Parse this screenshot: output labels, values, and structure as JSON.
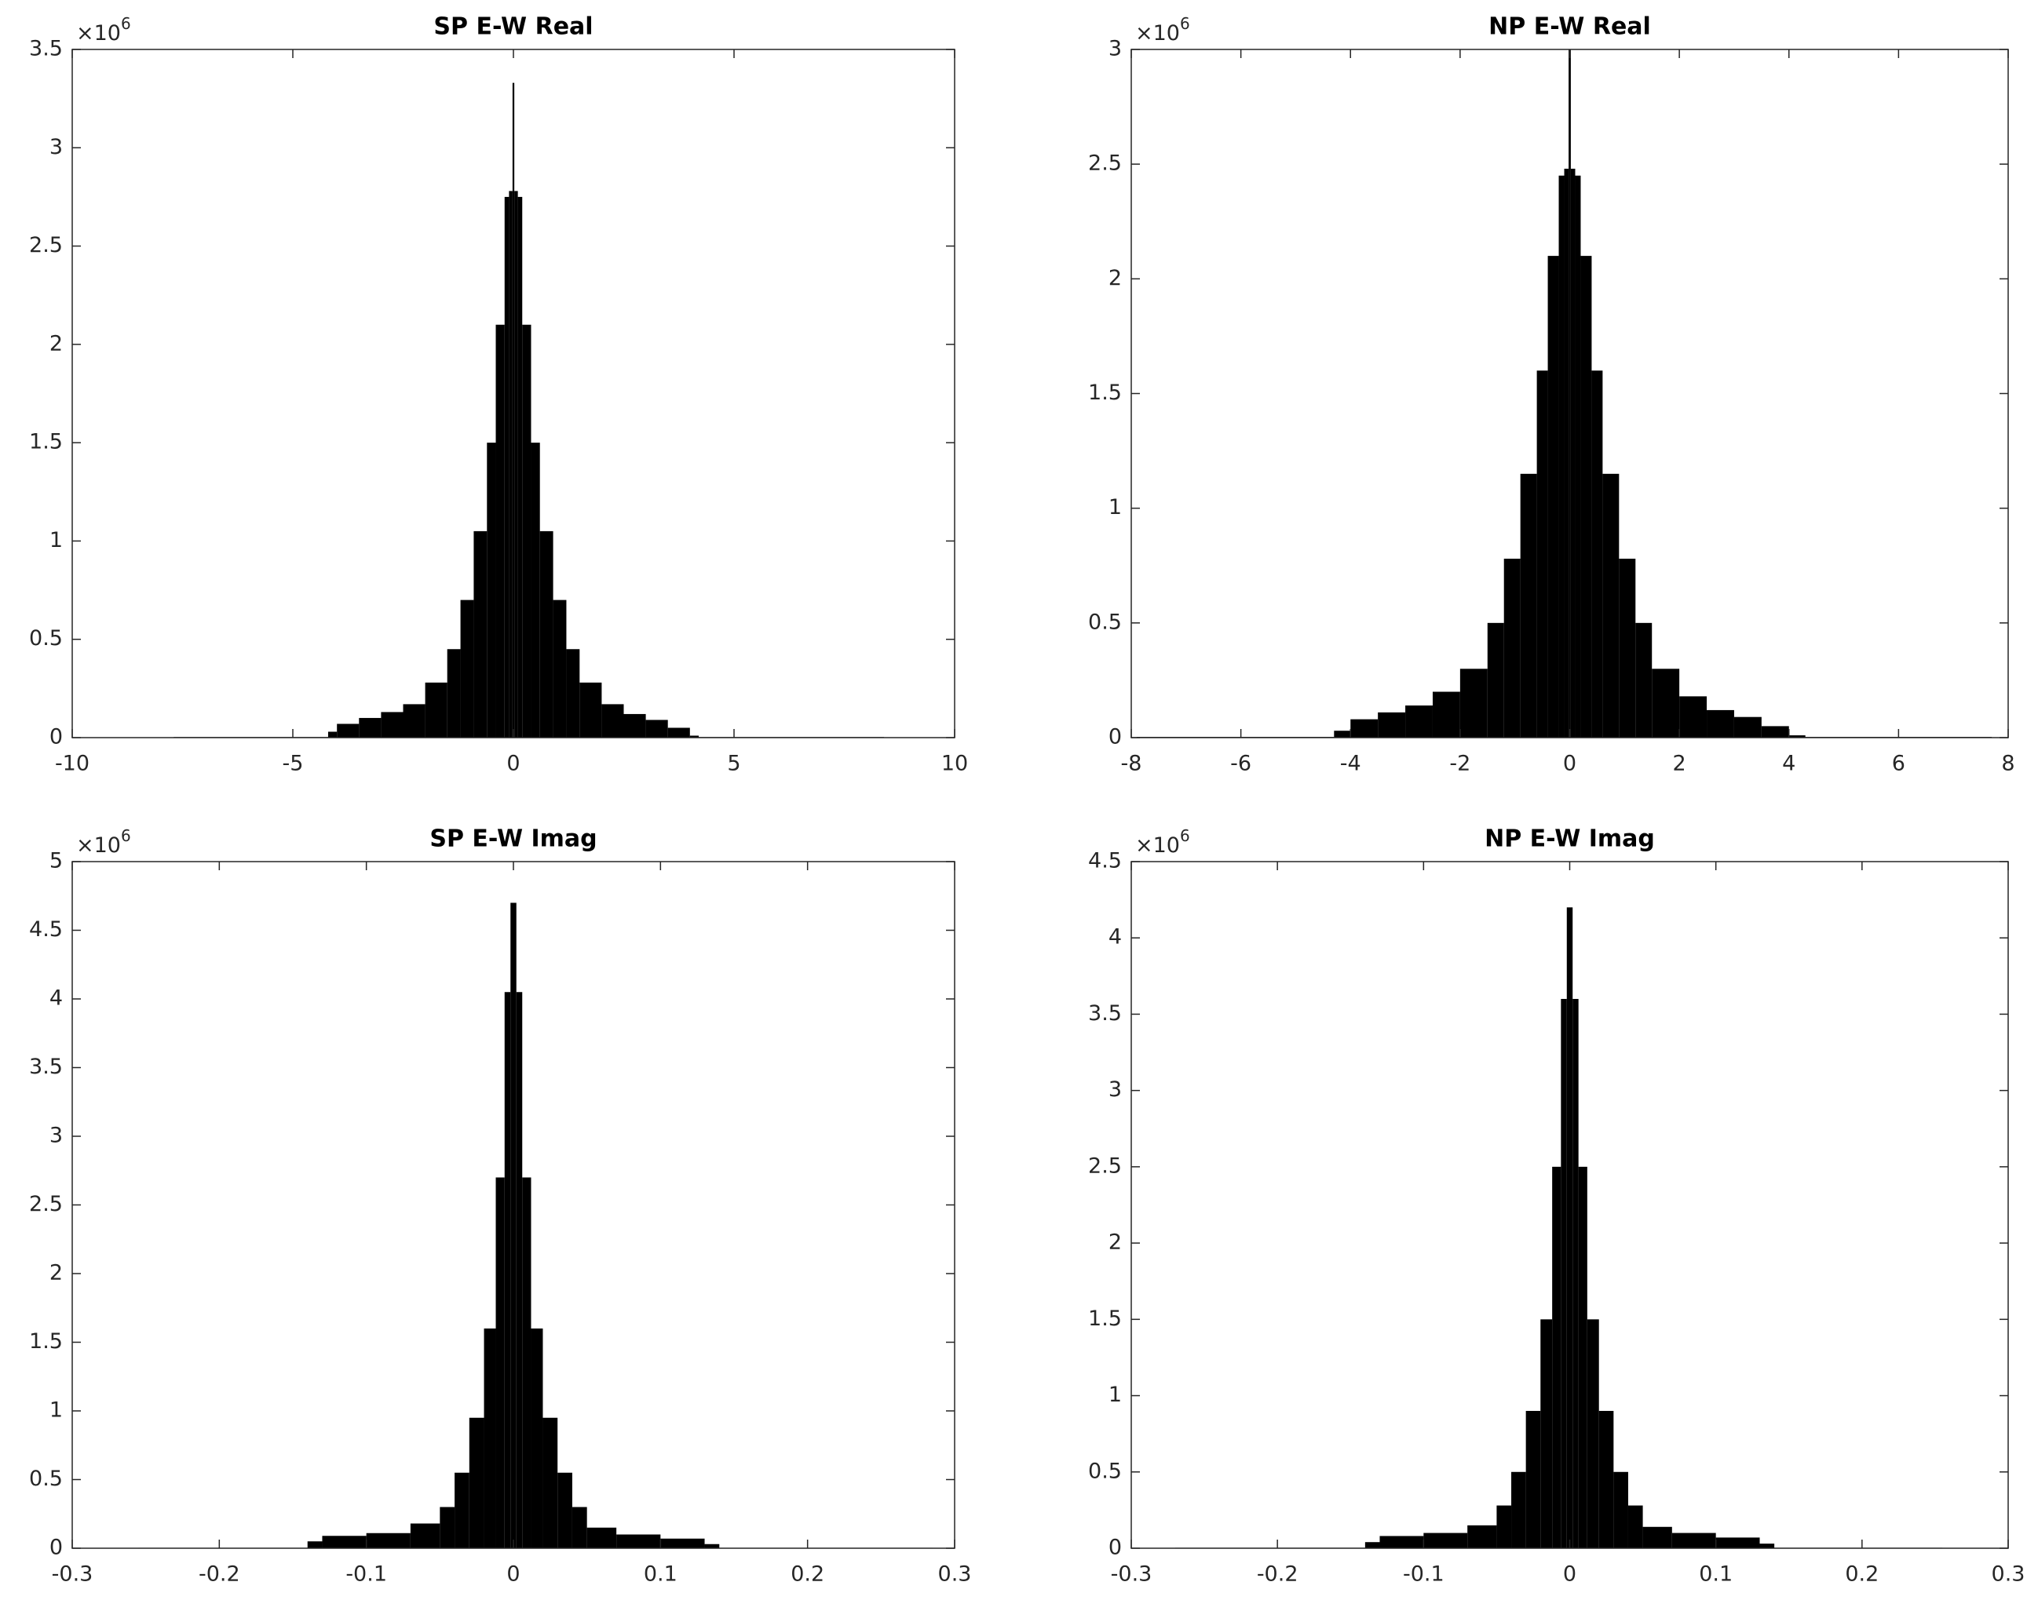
{
  "chart_data": [
    {
      "type": "histogram",
      "title": "SP E-W Real",
      "color": "#000000",
      "y_multiplier": {
        "base": "×10",
        "exponent": "6"
      },
      "bins": [
        -7.7,
        -4.2,
        -4,
        -3.5,
        -3,
        -2.5,
        -2,
        -1.5,
        -1.2,
        -0.9,
        -0.6,
        -0.4,
        -0.2,
        -0.1,
        -0.02,
        0.02,
        0.1,
        0.2,
        0.4,
        0.6,
        0.9,
        1.2,
        1.5,
        2,
        2.5,
        3,
        3.5,
        4,
        4.2,
        8.4
      ],
      "values": [
        0.003,
        0.03,
        0.07,
        0.1,
        0.13,
        0.17,
        0.28,
        0.45,
        0.7,
        1.05,
        1.5,
        2.1,
        2.75,
        2.78,
        3.33,
        2.78,
        2.75,
        2.1,
        1.5,
        1.05,
        0.7,
        0.45,
        0.28,
        0.17,
        0.12,
        0.09,
        0.05,
        0.01,
        0.003
      ],
      "xlim": [
        -10,
        10
      ],
      "xticks": [
        -10,
        -5,
        0,
        5,
        10
      ],
      "ylim": [
        0,
        3.5
      ],
      "yticks": [
        0,
        0.5,
        1,
        1.5,
        2,
        2.5,
        3,
        3.5
      ]
    },
    {
      "type": "histogram",
      "title": "NP E-W Real",
      "color": "#000000",
      "y_multiplier": {
        "base": "×10",
        "exponent": "6"
      },
      "bins": [
        -7.9,
        -4.3,
        -4,
        -3.5,
        -3,
        -2.5,
        -2,
        -1.5,
        -1.2,
        -0.9,
        -0.6,
        -0.4,
        -0.2,
        -0.1,
        -0.02,
        0.02,
        0.1,
        0.2,
        0.4,
        0.6,
        0.9,
        1.2,
        1.5,
        2,
        2.5,
        3,
        3.5,
        4,
        4.3,
        7.7
      ],
      "values": [
        0.003,
        0.03,
        0.08,
        0.11,
        0.14,
        0.2,
        0.3,
        0.5,
        0.78,
        1.15,
        1.6,
        2.1,
        2.45,
        2.48,
        3.0,
        2.48,
        2.45,
        2.1,
        1.6,
        1.15,
        0.78,
        0.5,
        0.3,
        0.18,
        0.12,
        0.09,
        0.05,
        0.01,
        0.003
      ],
      "xlim": [
        -8,
        8
      ],
      "xticks": [
        -8,
        -6,
        -4,
        -2,
        0,
        2,
        4,
        6,
        8
      ],
      "ylim": [
        0,
        3
      ],
      "yticks": [
        0,
        0.5,
        1,
        1.5,
        2,
        2.5,
        3
      ]
    },
    {
      "type": "histogram",
      "title": "SP E-W Imag",
      "color": "#000000",
      "y_multiplier": {
        "base": "×10",
        "exponent": "6"
      },
      "bins": [
        -0.255,
        -0.14,
        -0.13,
        -0.1,
        -0.07,
        -0.05,
        -0.04,
        -0.03,
        -0.02,
        -0.012,
        -0.006,
        -0.002,
        0.002,
        0.006,
        0.012,
        0.02,
        0.03,
        0.04,
        0.05,
        0.07,
        0.1,
        0.13,
        0.14,
        0.285
      ],
      "values": [
        0.003,
        0.05,
        0.09,
        0.11,
        0.18,
        0.3,
        0.55,
        0.95,
        1.6,
        2.7,
        4.05,
        4.7,
        4.05,
        2.7,
        1.6,
        0.95,
        0.55,
        0.3,
        0.15,
        0.1,
        0.07,
        0.03,
        0.003
      ],
      "xlim": [
        -0.3,
        0.3
      ],
      "xticks": [
        -0.3,
        -0.2,
        -0.1,
        0,
        0.1,
        0.2,
        0.3
      ],
      "ylim": [
        0,
        5
      ],
      "yticks": [
        0,
        0.5,
        1,
        1.5,
        2,
        2.5,
        3,
        3.5,
        4,
        4.5,
        5
      ]
    },
    {
      "type": "histogram",
      "title": "NP E-W Imag",
      "color": "#000000",
      "y_multiplier": {
        "base": "×10",
        "exponent": "6"
      },
      "bins": [
        -0.27,
        -0.14,
        -0.13,
        -0.1,
        -0.07,
        -0.05,
        -0.04,
        -0.03,
        -0.02,
        -0.012,
        -0.006,
        -0.002,
        0.002,
        0.006,
        0.012,
        0.02,
        0.03,
        0.04,
        0.05,
        0.07,
        0.1,
        0.13,
        0.14,
        0.255
      ],
      "values": [
        0.003,
        0.04,
        0.08,
        0.1,
        0.15,
        0.28,
        0.5,
        0.9,
        1.5,
        2.5,
        3.6,
        4.2,
        3.6,
        2.5,
        1.5,
        0.9,
        0.5,
        0.28,
        0.14,
        0.1,
        0.07,
        0.03,
        0.003
      ],
      "xlim": [
        -0.3,
        0.3
      ],
      "xticks": [
        -0.3,
        -0.2,
        -0.1,
        0,
        0.1,
        0.2,
        0.3
      ],
      "ylim": [
        0,
        4.5
      ],
      "yticks": [
        0,
        0.5,
        1,
        1.5,
        2,
        2.5,
        3,
        3.5,
        4,
        4.5
      ]
    }
  ]
}
